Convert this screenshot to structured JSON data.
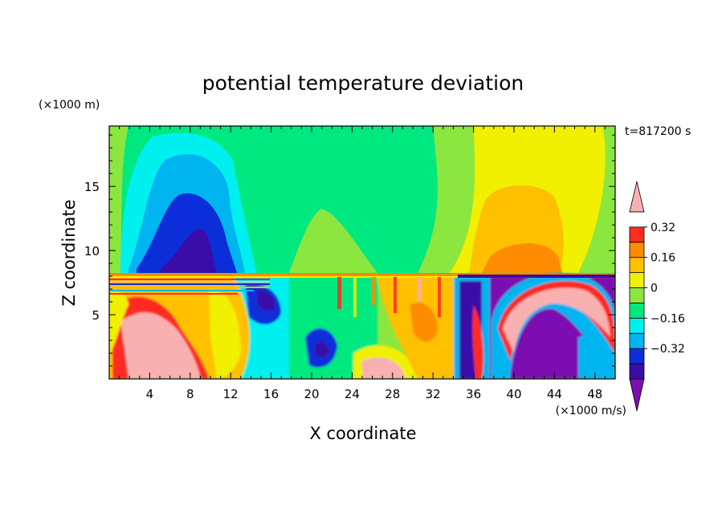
{
  "chart_data": {
    "type": "heatmap",
    "title": "potential temperature deviation",
    "xlabel": "X coordinate",
    "ylabel": "Z coordinate",
    "x_unit": "(×1000 m/s)",
    "y_unit": "(×1000 m)",
    "time_label": "t=817200 s",
    "xlim": [
      0,
      50
    ],
    "ylim": [
      0,
      19.7
    ],
    "x_ticks": [
      4,
      8,
      12,
      16,
      20,
      24,
      28,
      32,
      36,
      40,
      44,
      48
    ],
    "y_ticks": [
      5,
      10,
      15
    ],
    "colorbar": {
      "levels": [
        -0.48,
        -0.4,
        -0.32,
        -0.24,
        -0.16,
        -0.08,
        0,
        0.08,
        0.16,
        0.24,
        0.32,
        0.4
      ],
      "tick_labels": [
        "0.32",
        "0.16",
        "0",
        "−0.16",
        "−0.32"
      ],
      "tick_values": [
        0.32,
        0.16,
        0,
        -0.16,
        -0.32
      ],
      "colors": [
        "#7b10b0",
        "#3a0ca8",
        "#0b2ed8",
        "#00b4f0",
        "#00f0f0",
        "#00e880",
        "#8ce640",
        "#f0f000",
        "#ffc000",
        "#ff8c00",
        "#ff2c20",
        "#f8b0b0"
      ],
      "extend": "both"
    },
    "regions": {
      "upper_layer": [
        {
          "feature": "cold dome",
          "x_center": 9.5,
          "z_top": 19,
          "min_value": -0.4
        },
        {
          "feature": "warm dome",
          "x_center": 41.5,
          "z_top": 17.5,
          "max_value": 0.3
        }
      ],
      "interface_height": 8.2,
      "lower_layer": [
        {
          "feature": "warm patch",
          "x_range": [
            1,
            11
          ],
          "value": 0.45
        },
        {
          "feature": "cold eddy",
          "x_range": [
            15,
            21
          ],
          "value": -0.35
        },
        {
          "feature": "cold pool",
          "x_range": [
            37,
            50
          ],
          "value": -0.48
        },
        {
          "feature": "warm roll",
          "x_range": [
            40,
            50
          ],
          "value": 0.45
        }
      ]
    }
  }
}
